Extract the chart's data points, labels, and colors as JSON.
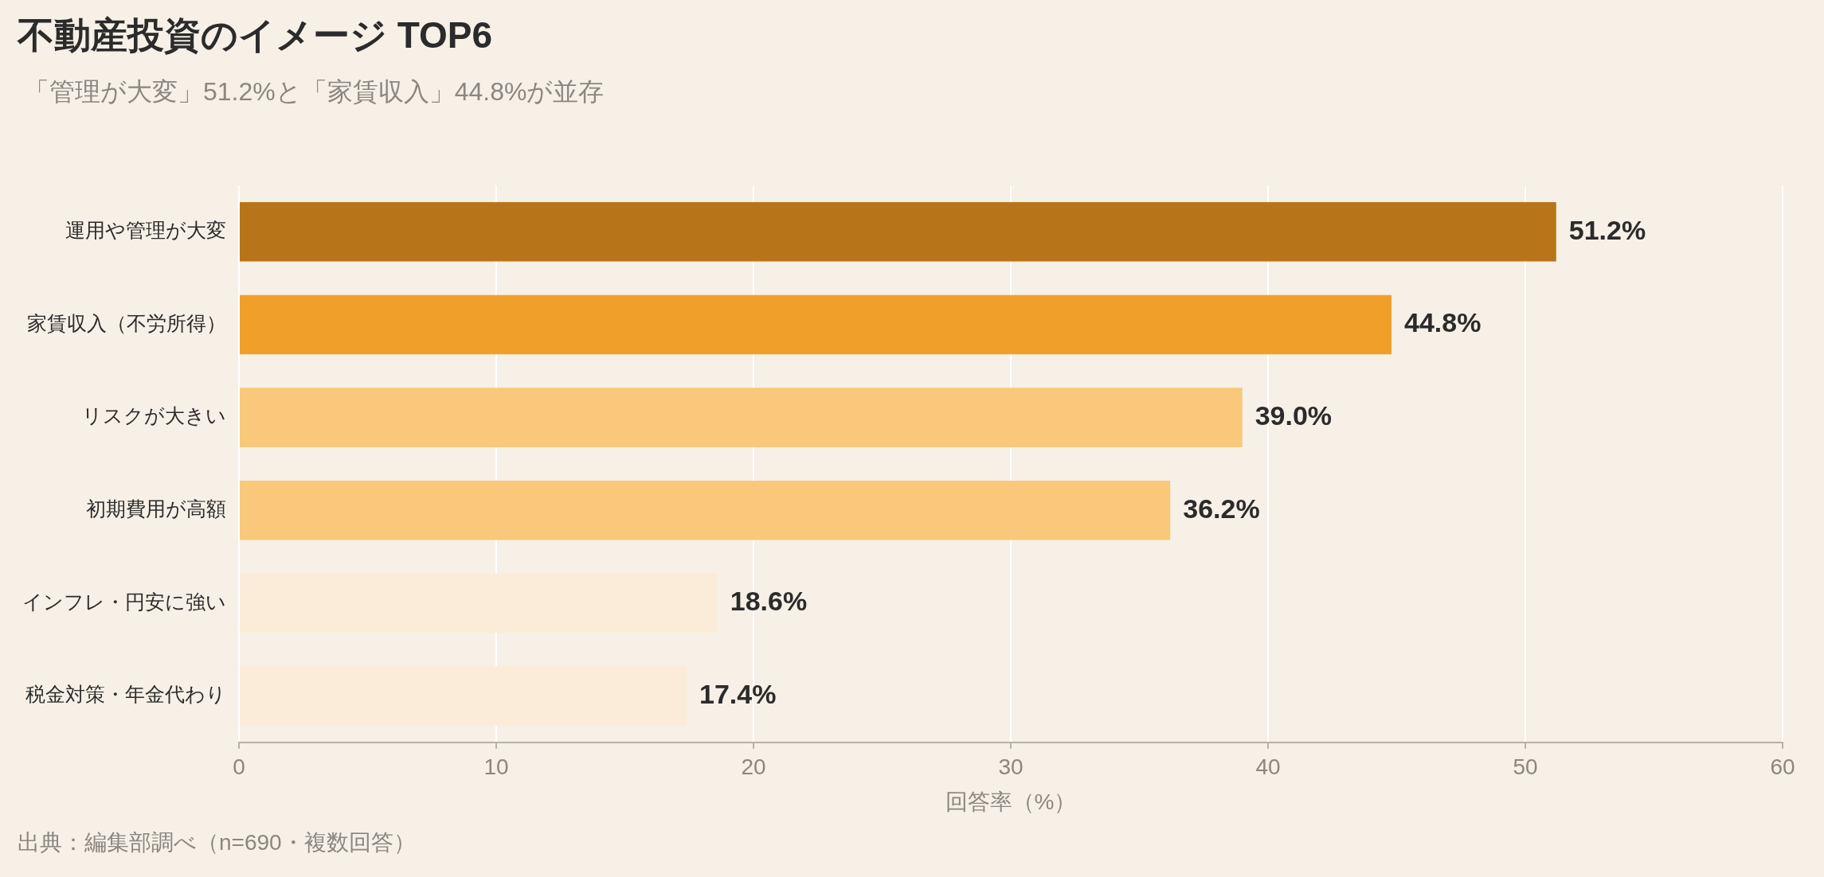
{
  "chart_data": {
    "type": "bar",
    "orientation": "horizontal",
    "title": "不動産投資のイメージ TOP6",
    "subtitle": "「管理が大変」51.2%と「家賃収入」44.8%が並存",
    "xlabel": "回答率（%）",
    "categories": [
      "運用や管理が大変",
      "家賃収入（不労所得）",
      "リスクが大きい",
      "初期費用が高額",
      "インフレ・円安に強い",
      "税金対策・年金代わり"
    ],
    "values": [
      51.2,
      44.8,
      39.0,
      36.2,
      18.6,
      17.4
    ],
    "value_labels": [
      "51.2%",
      "44.8%",
      "39.0%",
      "36.2%",
      "18.6%",
      "17.4%"
    ],
    "colors": [
      "#b87418",
      "#f0a02a",
      "#f9c87a",
      "#f9c87a",
      "#faecd9",
      "#faecd9"
    ],
    "xlim": [
      0,
      60
    ],
    "xticks": [
      0,
      10,
      20,
      30,
      40,
      50,
      60
    ],
    "grid": "x",
    "legend": false,
    "annotations": [
      "出典：編集部調べ（n=690・複数回答）"
    ]
  }
}
